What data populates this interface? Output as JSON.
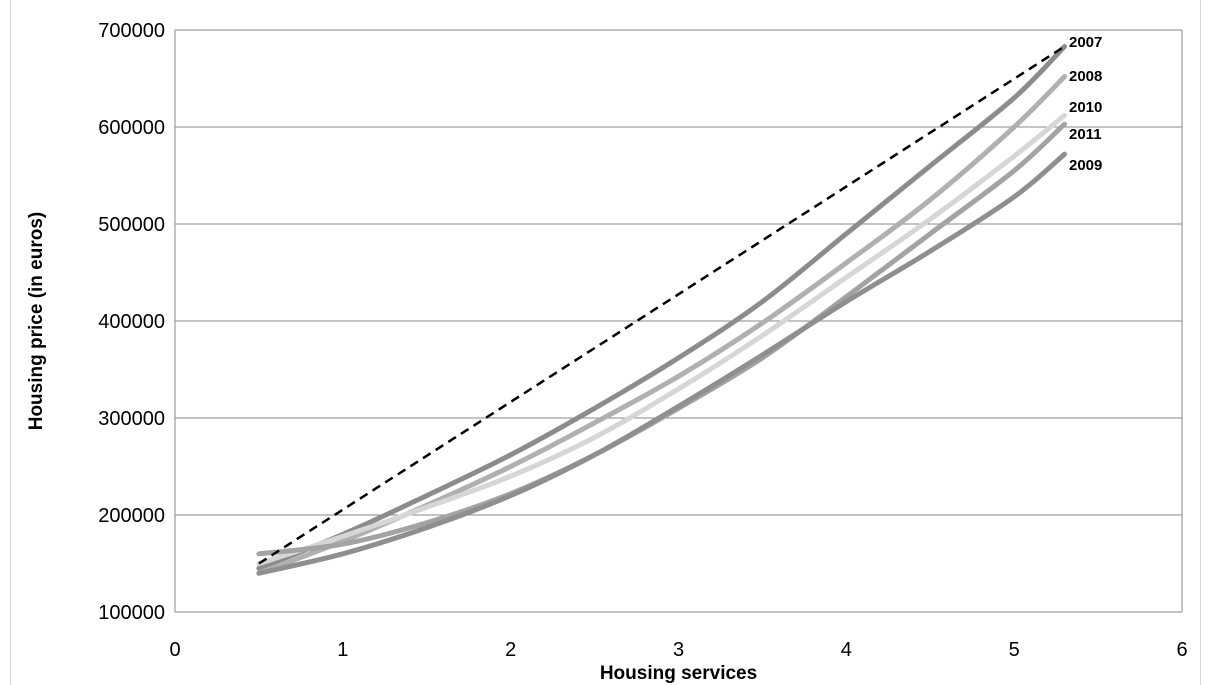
{
  "chart_data": {
    "type": "line",
    "xlabel": "Housing services",
    "ylabel": "Housing price (in euros)",
    "xlim": [
      0,
      6
    ],
    "ylim": [
      100000,
      700000
    ],
    "x_ticks": [
      "0",
      "1",
      "2",
      "3",
      "4",
      "5",
      "6"
    ],
    "y_ticks": [
      "100000",
      "200000",
      "300000",
      "400000",
      "500000",
      "600000",
      "700000"
    ],
    "grid": "horizontal",
    "legend": "inline-right",
    "series": [
      {
        "name": "2007",
        "color": "#8c8c8c",
        "dash": false,
        "x": [
          0.5,
          1,
          1.5,
          2,
          2.5,
          3,
          3.5,
          4,
          4.5,
          5,
          5.3
        ],
        "y": [
          145000,
          180000,
          220000,
          262000,
          310000,
          362000,
          420000,
          490000,
          560000,
          630000,
          683000
        ]
      },
      {
        "name": "2008",
        "color": "#b0b0b0",
        "dash": false,
        "x": [
          0.5,
          1,
          1.5,
          2,
          2.5,
          3,
          3.5,
          4,
          4.5,
          5,
          5.3
        ],
        "y": [
          140000,
          173000,
          210000,
          250000,
          295000,
          343000,
          398000,
          460000,
          525000,
          600000,
          652000
        ]
      },
      {
        "name": "2010",
        "color": "#d6d6d6",
        "dash": false,
        "x": [
          0.5,
          1,
          1.5,
          2,
          2.5,
          3,
          3.5,
          4,
          4.5,
          5,
          5.3
        ],
        "y": [
          150000,
          178000,
          208000,
          240000,
          280000,
          330000,
          385000,
          445000,
          505000,
          570000,
          612000
        ]
      },
      {
        "name": "2011",
        "color": "#a3a3a3",
        "dash": false,
        "x": [
          0.5,
          1,
          1.5,
          2,
          2.5,
          3,
          3.5,
          4,
          4.5,
          5,
          5.3
        ],
        "y": [
          160000,
          170000,
          192000,
          222000,
          262000,
          310000,
          362000,
          425000,
          490000,
          555000,
          603000
        ]
      },
      {
        "name": "2009",
        "color": "#8f8f8f",
        "dash": false,
        "x": [
          0.5,
          1,
          1.5,
          2,
          2.5,
          3,
          3.5,
          4,
          4.5,
          5,
          5.3
        ],
        "y": [
          140000,
          160000,
          187000,
          220000,
          262000,
          312000,
          365000,
          420000,
          472000,
          528000,
          572000
        ]
      },
      {
        "name": "",
        "color": "#000000",
        "dash": true,
        "x": [
          0.5,
          5.3
        ],
        "y": [
          150000,
          683000
        ]
      }
    ]
  }
}
